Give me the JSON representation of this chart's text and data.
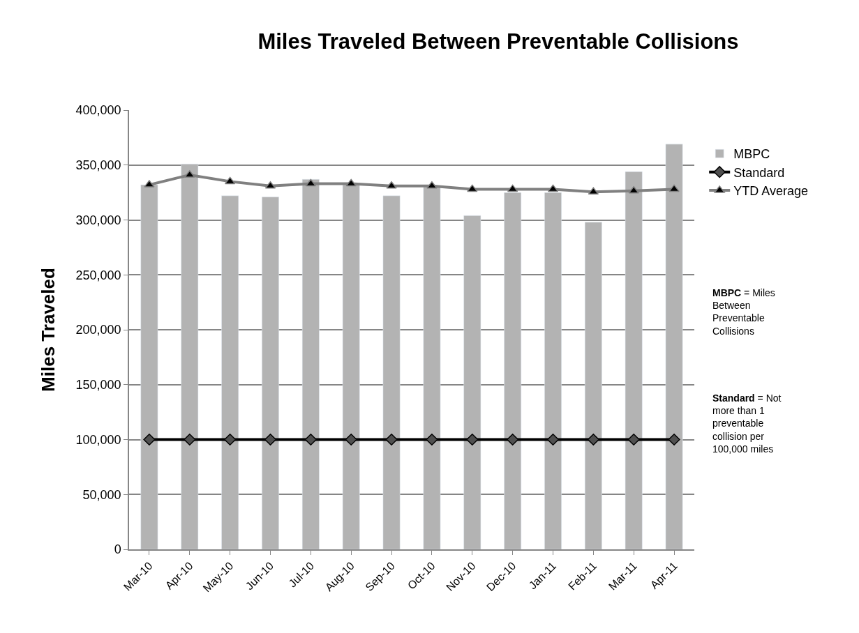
{
  "chart_data": {
    "type": "bar",
    "title": "Miles Traveled Between Preventable Collisions",
    "ylabel": "Miles Traveled",
    "categories": [
      "Mar-10",
      "Apr-10",
      "May-10",
      "Jun-10",
      "Jul-10",
      "Aug-10",
      "Sep-10",
      "Oct-10",
      "Nov-10",
      "Dec-10",
      "Jan-11",
      "Feb-11",
      "Mar-11",
      "Apr-11"
    ],
    "series": [
      {
        "name": "MBPC",
        "color": "#b3b3b3",
        "values": [
          332000,
          351000,
          322000,
          321000,
          337000,
          332000,
          322000,
          330000,
          304000,
          325000,
          325000,
          298000,
          344000,
          369000
        ]
      },
      {
        "name": "Standard",
        "type": "line",
        "color": "#000000",
        "marker": "diamond",
        "values": [
          100000,
          100000,
          100000,
          100000,
          100000,
          100000,
          100000,
          100000,
          100000,
          100000,
          100000,
          100000,
          100000,
          100000
        ]
      },
      {
        "name": "YTD Average",
        "type": "line",
        "color": "#808080",
        "marker": "triangle",
        "values": [
          332000,
          341000,
          335000,
          331000,
          333000,
          333000,
          331000,
          331000,
          328000,
          328000,
          328000,
          325500,
          326500,
          328000
        ]
      }
    ],
    "ylim": [
      0,
      400000
    ],
    "yticks": [
      {
        "value": 0,
        "label": "0"
      },
      {
        "value": 50000,
        "label": "50,000"
      },
      {
        "value": 100000,
        "label": "100,000"
      },
      {
        "value": 150000,
        "label": "150,000"
      },
      {
        "value": 200000,
        "label": "200,000"
      },
      {
        "value": 250000,
        "label": "250,000"
      },
      {
        "value": 300000,
        "label": "300,000"
      },
      {
        "value": 350000,
        "label": "350,000"
      },
      {
        "value": 400000,
        "label": "400,000"
      }
    ],
    "grid": "y",
    "legend": "right",
    "annotations": [
      "MBPC = Miles Between Preventable Collisions",
      "Standard = Not more than 1 preventable collision per 100,000 miles"
    ]
  }
}
